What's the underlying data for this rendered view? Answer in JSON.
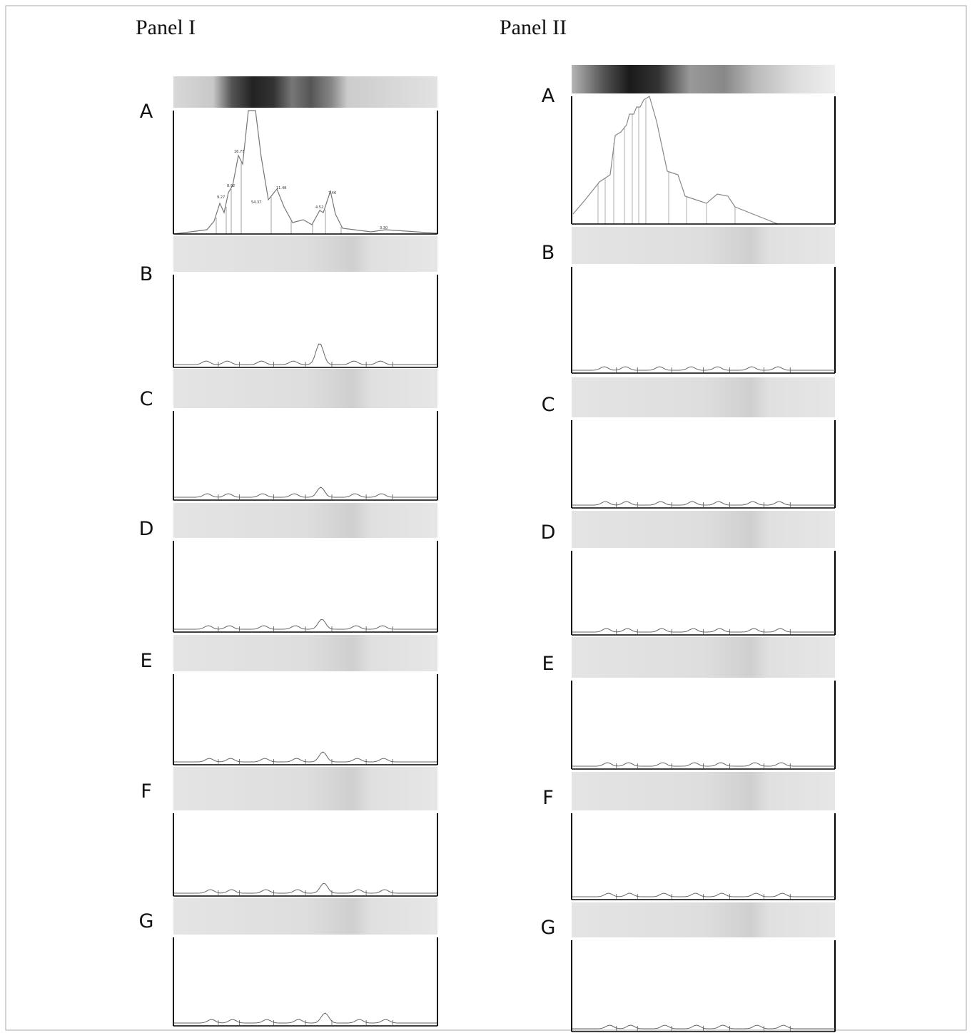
{
  "panels": [
    {
      "title": "Panel I",
      "lanes": [
        {
          "label": "A",
          "peaks": [
            "9.27",
            "8.92",
            "16.77",
            "54.37",
            "11.48",
            "4.52",
            "7.46",
            "3.30"
          ]
        },
        {
          "label": "B"
        },
        {
          "label": "C"
        },
        {
          "label": "D"
        },
        {
          "label": "E"
        },
        {
          "label": "F"
        },
        {
          "label": "G"
        }
      ]
    },
    {
      "title": "Panel II",
      "lanes": [
        {
          "label": "A"
        },
        {
          "label": "B"
        },
        {
          "label": "C"
        },
        {
          "label": "D"
        },
        {
          "label": "E"
        },
        {
          "label": "F"
        },
        {
          "label": "G"
        }
      ]
    }
  ]
}
